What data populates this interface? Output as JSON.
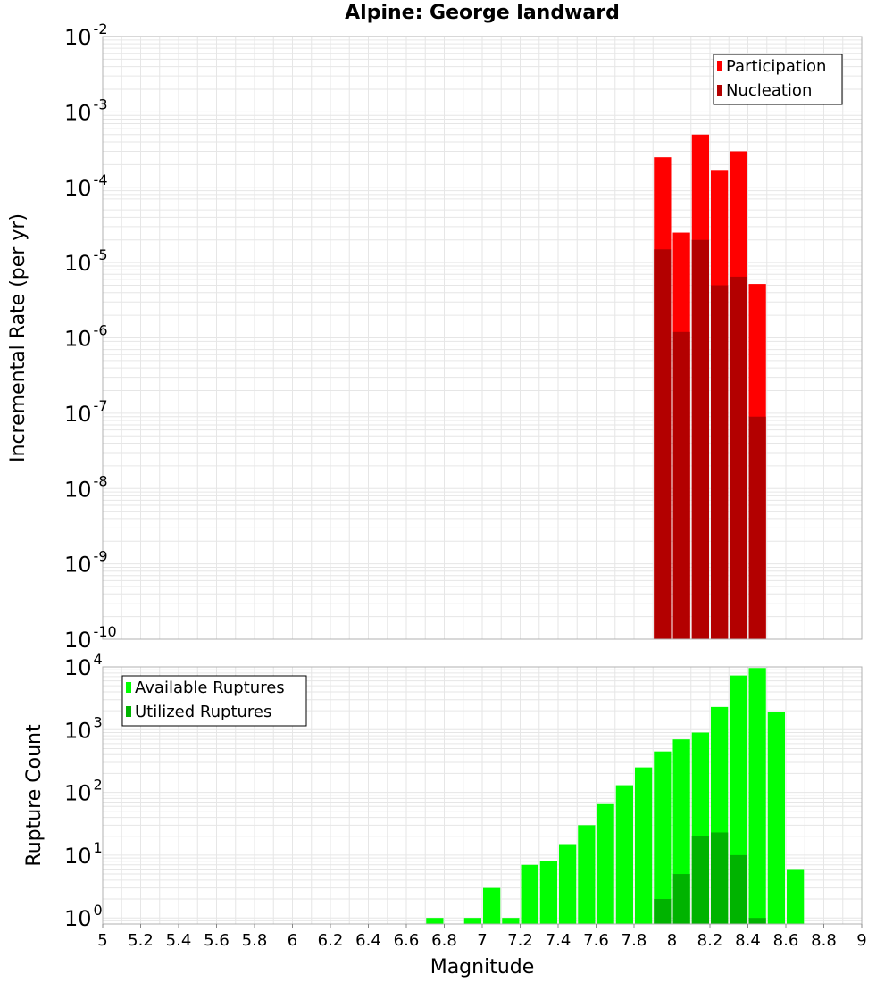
{
  "title": "Alpine: George landward",
  "colors": {
    "participation": "#ff0000",
    "nucleation": "#b30000",
    "available": "#00ff00",
    "utilized": "#00b300",
    "grid": "#e6e6e6",
    "frame": "#b0b0b0"
  },
  "chart_data": [
    {
      "type": "bar",
      "panel": "top",
      "yscale": "log",
      "ylabel": "Incremental Rate (per yr)",
      "xlabel": "",
      "xlim": [
        5,
        9
      ],
      "ylim": [
        1e-10,
        0.01
      ],
      "grid": true,
      "legend_position": "top-right",
      "y_ticks": [
        {
          "base": "10",
          "exp": "-2",
          "value": 0.01
        },
        {
          "base": "10",
          "exp": "-3",
          "value": 0.001
        },
        {
          "base": "10",
          "exp": "-4",
          "value": 0.0001
        },
        {
          "base": "10",
          "exp": "-5",
          "value": 1e-05
        },
        {
          "base": "10",
          "exp": "-6",
          "value": 1e-06
        },
        {
          "base": "10",
          "exp": "-7",
          "value": 1e-07
        },
        {
          "base": "10",
          "exp": "-8",
          "value": 1e-08
        },
        {
          "base": "10",
          "exp": "-9",
          "value": 1e-09
        },
        {
          "base": "10",
          "exp": "-10",
          "value": 1e-10
        }
      ],
      "x": [
        7.95,
        8.05,
        8.15,
        8.25,
        8.35,
        8.45
      ],
      "series": [
        {
          "name": "Participation",
          "color": "#ff0000",
          "values": [
            0.00025,
            2.5e-05,
            0.0005,
            0.00017,
            0.0003,
            5.2e-06
          ]
        },
        {
          "name": "Nucleation",
          "color": "#b30000",
          "values": [
            1.5e-05,
            1.2e-06,
            2e-05,
            5e-06,
            6.5e-06,
            9e-08
          ]
        }
      ]
    },
    {
      "type": "bar",
      "panel": "bottom",
      "yscale": "log",
      "ylabel": "Rupture Count",
      "xlabel": "Magnitude",
      "xlim": [
        5,
        9
      ],
      "ylim": [
        0.8,
        10000
      ],
      "grid": true,
      "legend_position": "top-left",
      "x_tick_labels": [
        "5",
        "5.2",
        "5.4",
        "5.6",
        "5.8",
        "6",
        "6.2",
        "6.4",
        "6.6",
        "6.8",
        "7",
        "7.2",
        "7.4",
        "7.6",
        "7.8",
        "8",
        "8.2",
        "8.4",
        "8.6",
        "8.8",
        "9"
      ],
      "y_ticks": [
        {
          "base": "10",
          "exp": "4",
          "value": 10000
        },
        {
          "base": "10",
          "exp": "3",
          "value": 1000
        },
        {
          "base": "10",
          "exp": "2",
          "value": 100
        },
        {
          "base": "10",
          "exp": "1",
          "value": 10
        },
        {
          "base": "10",
          "exp": "0",
          "value": 1
        }
      ],
      "x": [
        6.75,
        6.95,
        7.05,
        7.15,
        7.25,
        7.35,
        7.45,
        7.55,
        7.65,
        7.75,
        7.85,
        7.95,
        8.05,
        8.15,
        8.25,
        8.35,
        8.45,
        8.55,
        8.65
      ],
      "series": [
        {
          "name": "Available Ruptures",
          "color": "#00ff00",
          "values": [
            1,
            1,
            3,
            1,
            7,
            8,
            15,
            30,
            65,
            130,
            250,
            450,
            700,
            900,
            2300,
            7300,
            9600,
            1900,
            6
          ]
        },
        {
          "name": "Utilized Ruptures",
          "color": "#00b300",
          "values": [
            0,
            0,
            0,
            0,
            0,
            0,
            0,
            0,
            0,
            0,
            0,
            2,
            5,
            20,
            23,
            10,
            1,
            0,
            0
          ]
        }
      ]
    }
  ]
}
